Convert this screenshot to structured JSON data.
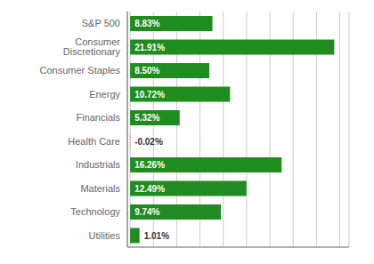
{
  "chart_data": {
    "type": "bar",
    "orientation": "horizontal",
    "categories": [
      "S&P 500",
      "Consumer Discretionary",
      "Consumer Staples",
      "Energy",
      "Financials",
      "Health Care",
      "Industrials",
      "Materials",
      "Technology",
      "Utilities"
    ],
    "values": [
      8.83,
      21.91,
      8.5,
      10.72,
      5.32,
      -0.02,
      16.26,
      12.49,
      9.74,
      1.01
    ],
    "value_labels": [
      "8.83%",
      "21.91%",
      "8.50%",
      "10.72%",
      "5.32%",
      "-0.02%",
      "16.26%",
      "12.49%",
      "9.74%",
      "1.01%"
    ],
    "colors": [
      "#1e8c1e",
      "#1e8c1e",
      "#1e8c1e",
      "#1e8c1e",
      "#1e8c1e",
      "#cc2222",
      "#1e8c1e",
      "#1e8c1e",
      "#1e8c1e",
      "#1e8c1e"
    ],
    "data_labels": true,
    "xlim": [
      -0.3,
      23.5
    ],
    "xticks": [
      0,
      2.5,
      5,
      7.5,
      10,
      12.5,
      15,
      17.5,
      20,
      22.5
    ],
    "grid": true,
    "tick_labels": "y"
  }
}
